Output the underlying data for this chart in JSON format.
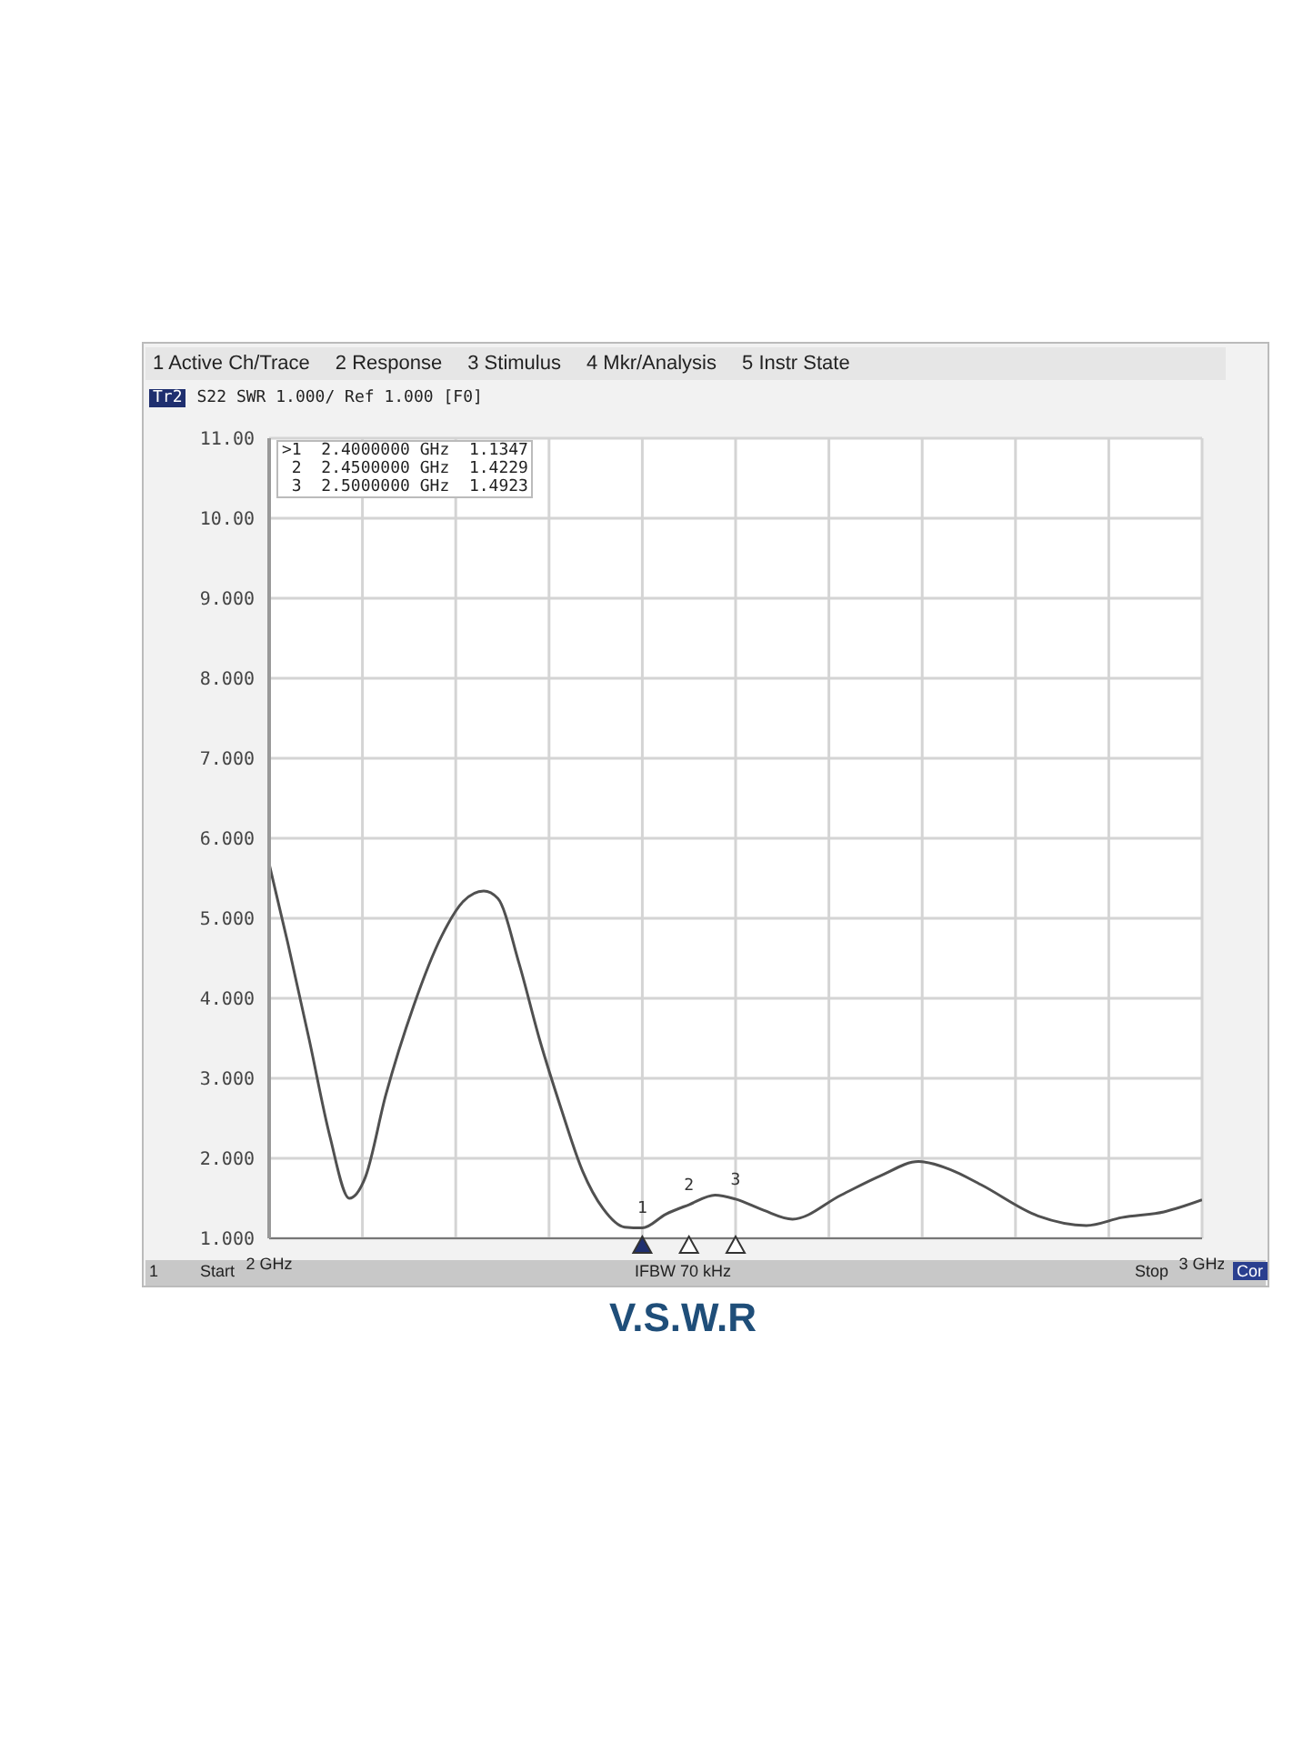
{
  "chart_data": {
    "type": "line",
    "title": "V.S.W.R",
    "subtitle": "S22 SWR 1.000/ Ref 1.000 [F0]",
    "x": [
      2.0,
      2.02,
      2.043,
      2.065,
      2.086,
      2.103,
      2.125,
      2.155,
      2.185,
      2.208,
      2.23,
      2.245,
      2.268,
      2.29,
      2.313,
      2.336,
      2.358,
      2.381,
      2.4,
      2.425,
      2.45,
      2.478,
      2.5,
      2.53,
      2.561,
      2.613,
      2.655,
      2.696,
      2.73,
      2.763,
      2.824,
      2.876,
      2.914,
      2.959,
      3.0
    ],
    "values": [
      5.68,
      4.69,
      3.48,
      2.28,
      1.5,
      1.76,
      2.79,
      3.91,
      4.78,
      5.21,
      5.34,
      5.25,
      4.43,
      3.48,
      2.62,
      1.84,
      1.37,
      1.14,
      1.13,
      1.3,
      1.42,
      1.54,
      1.49,
      1.35,
      1.24,
      1.54,
      1.78,
      1.96,
      1.86,
      1.67,
      1.28,
      1.16,
      1.26,
      1.33,
      1.48
    ],
    "color": "#505050",
    "marker": "none",
    "line_style": "solid",
    "grid": true,
    "xlim": [
      2,
      3
    ],
    "xticks": [
      {
        "value": 2,
        "label": "2 GHz"
      },
      {
        "value": 2.1,
        "label": null
      },
      {
        "value": 2.2,
        "label": null
      },
      {
        "value": 2.3,
        "label": null
      },
      {
        "value": 2.4,
        "label": null
      },
      {
        "value": 2.5,
        "label": null
      },
      {
        "value": 2.6,
        "label": null
      },
      {
        "value": 2.7,
        "label": null
      },
      {
        "value": 2.8,
        "label": null
      },
      {
        "value": 2.9,
        "label": null
      },
      {
        "value": 3,
        "label": "3 GHz"
      }
    ],
    "ylim": [
      1,
      11
    ],
    "yticks": [
      {
        "value": 1,
        "label": "1.000"
      },
      {
        "value": 2,
        "label": "2.000"
      },
      {
        "value": 3,
        "label": "3.000"
      },
      {
        "value": 4,
        "label": "4.000"
      },
      {
        "value": 5,
        "label": "5.000"
      },
      {
        "value": 6,
        "label": "6.000"
      },
      {
        "value": 7,
        "label": "7.000"
      },
      {
        "value": 8,
        "label": "8.000"
      },
      {
        "value": 9,
        "label": "9.000"
      },
      {
        "value": 10,
        "label": "10.00"
      },
      {
        "value": 11,
        "label": "11.00"
      }
    ],
    "annotations": [
      "1 Active Ch/Trace",
      "2 Response",
      "3 Stimulus",
      "4 Mkr/Analysis",
      "5 Instr State",
      "Tr2",
      ">1  2.4000000 GHz  1.1347",
      " 2  2.4500000 GHz  1.4229",
      " 3  2.5000000 GHz  1.4923",
      "1",
      "IFBW 70 kHz",
      "Cor",
      "Start",
      "Stop",
      {
        "text": "1",
        "x": 2.4,
        "y": 1.1347
      },
      {
        "text": "2",
        "x": 2.45,
        "y": 1.4229
      },
      {
        "text": "3",
        "x": 2.5,
        "y": 1.4923
      }
    ]
  }
}
